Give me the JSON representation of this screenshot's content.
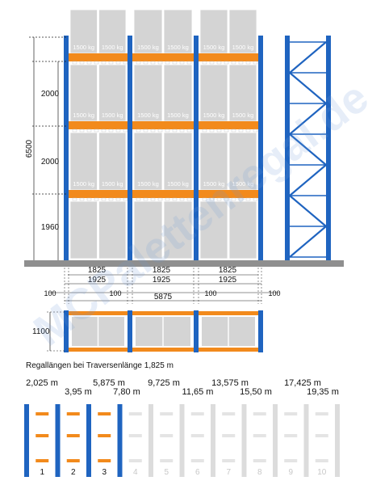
{
  "colors": {
    "upright": "#1f64c0",
    "beam": "#f28a1c",
    "pallet": "#d4d4d4",
    "floor": "#8f8f8f",
    "inactive": "#dcdcdc",
    "watermark": "#6f9bd8"
  },
  "front_view": {
    "pallet_label": "1500 kg",
    "total_height": "6500",
    "level_heights": [
      "2000",
      "2000",
      "1960"
    ],
    "bay_clear": [
      "1825",
      "1825",
      "1825"
    ],
    "bay_beam": [
      "1925",
      "1925",
      "1925"
    ],
    "frame_spacing": [
      "100",
      "100",
      "100",
      "100"
    ],
    "total_length": "5875"
  },
  "top_view": {
    "depth": "1100"
  },
  "lengths": {
    "caption": "Regallängen bei Traversenlänge 1,825 m",
    "values": [
      "2,025 m",
      "3,95 m",
      "5,875 m",
      "7,80 m",
      "9,725 m",
      "11,65 m",
      "13,575 m",
      "15,50 m",
      "17,425 m",
      "19,35 m"
    ],
    "bay_numbers": [
      "1",
      "2",
      "3",
      "4",
      "5",
      "6",
      "7",
      "8",
      "9",
      "10"
    ],
    "active_bays": 3
  },
  "watermark": "MCPalettenregal.de"
}
